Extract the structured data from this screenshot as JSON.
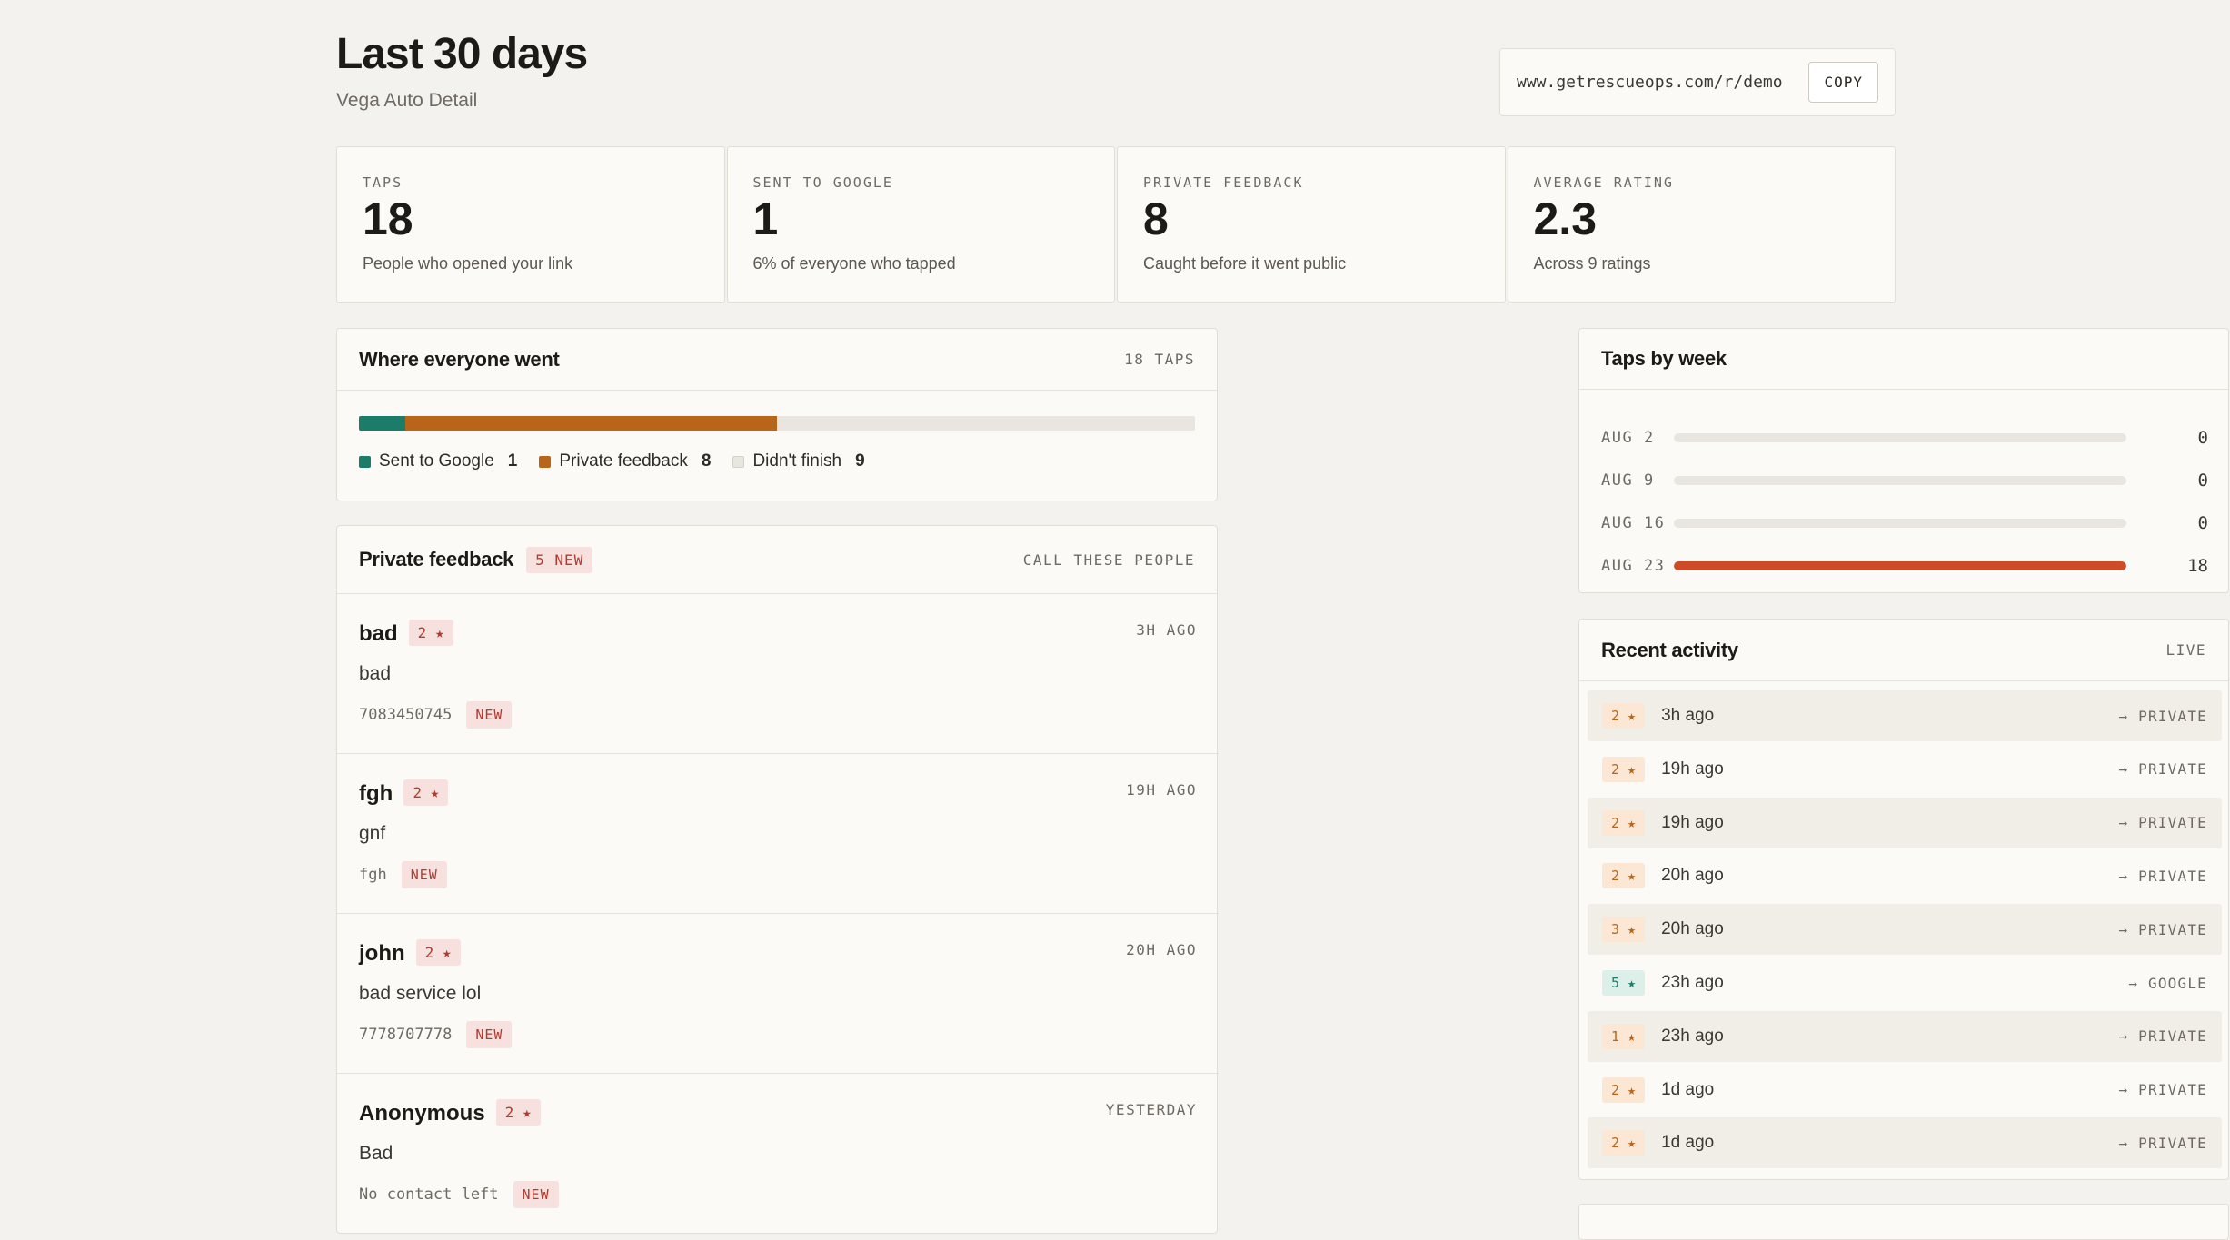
{
  "header": {
    "title": "Last 30 days",
    "subtitle": "Vega Auto Detail",
    "link_url": "www.getrescueops.com/r/demo",
    "copy_label": "COPY"
  },
  "stats": [
    {
      "label": "TAPS",
      "value": "18",
      "desc": "People who opened your link"
    },
    {
      "label": "SENT TO GOOGLE",
      "value": "1",
      "desc": "6% of everyone who tapped"
    },
    {
      "label": "PRIVATE FEEDBACK",
      "value": "8",
      "desc": "Caught before it went public"
    },
    {
      "label": "AVERAGE RATING",
      "value": "2.3",
      "desc": "Across 9 ratings"
    }
  ],
  "where": {
    "title": "Where everyone went",
    "taps_label": "18 TAPS",
    "total": 18,
    "segments": [
      {
        "label": "Sent to Google",
        "count": "1",
        "value": 1,
        "color": "#1b7c69"
      },
      {
        "label": "Private feedback",
        "count": "8",
        "value": 8,
        "color": "#b8651a"
      },
      {
        "label": "Didn't finish",
        "count": "9",
        "value": 9,
        "color": "#e9e6df"
      }
    ]
  },
  "feedback": {
    "title": "Private feedback",
    "new_badge": "5 NEW",
    "action": "CALL THESE PEOPLE",
    "items": [
      {
        "name": "bad",
        "rating": "2 ★",
        "time": "3H AGO",
        "text": "bad",
        "contact": "7083450745",
        "tag": "NEW"
      },
      {
        "name": "fgh",
        "rating": "2 ★",
        "time": "19H AGO",
        "text": "gnf",
        "contact": "fgh",
        "tag": "NEW"
      },
      {
        "name": "john",
        "rating": "2 ★",
        "time": "20H AGO",
        "text": "bad service lol",
        "contact": "7778707778",
        "tag": "NEW"
      },
      {
        "name": "Anonymous",
        "rating": "2 ★",
        "time": "YESTERDAY",
        "text": "Bad",
        "contact": "No contact left",
        "tag": "NEW"
      }
    ]
  },
  "weeks": {
    "title": "Taps by week",
    "max": 18,
    "accent": "#cf4a26",
    "rows": [
      {
        "label": "AUG 2",
        "value": 0,
        "display": "0"
      },
      {
        "label": "AUG 9",
        "value": 0,
        "display": "0"
      },
      {
        "label": "AUG 16",
        "value": 0,
        "display": "0"
      },
      {
        "label": "AUG 23",
        "value": 18,
        "display": "18"
      }
    ]
  },
  "activity": {
    "title": "Recent activity",
    "status": "LIVE",
    "rows": [
      {
        "rating": "2 ★",
        "time": "3h ago",
        "dest": "→ PRIVATE",
        "kind": "priv"
      },
      {
        "rating": "2 ★",
        "time": "19h ago",
        "dest": "→ PRIVATE",
        "kind": "priv"
      },
      {
        "rating": "2 ★",
        "time": "19h ago",
        "dest": "→ PRIVATE",
        "kind": "priv"
      },
      {
        "rating": "2 ★",
        "time": "20h ago",
        "dest": "→ PRIVATE",
        "kind": "priv"
      },
      {
        "rating": "3 ★",
        "time": "20h ago",
        "dest": "→ PRIVATE",
        "kind": "priv"
      },
      {
        "rating": "5 ★",
        "time": "23h ago",
        "dest": "→ GOOGLE",
        "kind": "goog"
      },
      {
        "rating": "1 ★",
        "time": "23h ago",
        "dest": "→ PRIVATE",
        "kind": "priv"
      },
      {
        "rating": "2 ★",
        "time": "1d ago",
        "dest": "→ PRIVATE",
        "kind": "priv"
      },
      {
        "rating": "2 ★",
        "time": "1d ago",
        "dest": "→ PRIVATE",
        "kind": "priv"
      }
    ]
  }
}
